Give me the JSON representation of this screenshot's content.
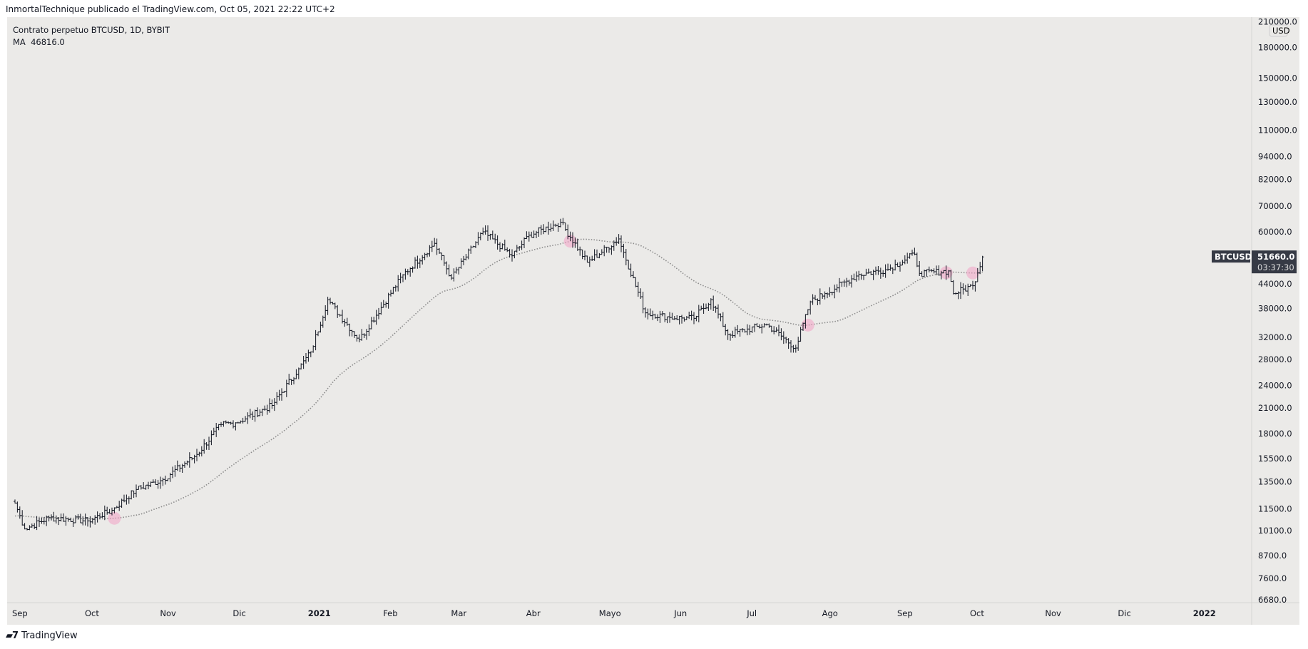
{
  "header": {
    "attribution": "InmortalTechnique publicado el TradingView.com, Oct 05, 2021 22:22 UTC+2"
  },
  "legend": {
    "symbol_line": "Contrato perpetuo BTCUSD, 1D, BYBIT",
    "ma_label": "MA",
    "ma_value": "46816.0"
  },
  "footer": {
    "brand": "TradingView"
  },
  "colors": {
    "bg": "#ebeae8",
    "bar": "#131722",
    "ma": "#8c8c8c",
    "highlight": "#f2a0c4",
    "label_bg": "#363a45"
  },
  "chart_data": {
    "type": "ohlc",
    "symbol": "BTCUSD",
    "interval": "1D",
    "exchange": "BYBIT",
    "scale": "log",
    "currency": "USD",
    "ylim": [
      6500,
      215000
    ],
    "price_ticks": [
      "210000.0",
      "180000.0",
      "150000.0",
      "130000.0",
      "110000.0",
      "94000.0",
      "82000.0",
      "70000.0",
      "60000.0",
      "44000.0",
      "38000.0",
      "32000.0",
      "28000.0",
      "24000.0",
      "21000.0",
      "18000.0",
      "15500.0",
      "13500.0",
      "11500.0",
      "10100.0",
      "8700.0",
      "7600.0",
      "6680.0"
    ],
    "price_tick_values": [
      210000,
      180000,
      150000,
      130000,
      110000,
      94000,
      82000,
      70000,
      60000,
      44000,
      38000,
      32000,
      28000,
      24000,
      21000,
      18000,
      15500,
      13500,
      11500,
      10100,
      8700,
      7600,
      6680
    ],
    "time_ticks": [
      {
        "label": "Sep",
        "day": 0
      },
      {
        "label": "Oct",
        "day": 30
      },
      {
        "label": "Nov",
        "day": 61
      },
      {
        "label": "Dic",
        "day": 91
      },
      {
        "label": "2021",
        "day": 122,
        "bold": true
      },
      {
        "label": "Feb",
        "day": 153
      },
      {
        "label": "Mar",
        "day": 181
      },
      {
        "label": "Abr",
        "day": 212
      },
      {
        "label": "Mayo",
        "day": 242
      },
      {
        "label": "Jun",
        "day": 273
      },
      {
        "label": "Jul",
        "day": 303
      },
      {
        "label": "Ago",
        "day": 334
      },
      {
        "label": "Sep",
        "day": 365
      },
      {
        "label": "Oct",
        "day": 395
      },
      {
        "label": "Nov",
        "day": 426
      },
      {
        "label": "Dic",
        "day": 456
      },
      {
        "label": "2022",
        "day": 487,
        "bold": true
      }
    ],
    "start_date": "2020-09-01",
    "close_keypoints": [
      [
        0,
        11900
      ],
      [
        4,
        10200
      ],
      [
        14,
        10900
      ],
      [
        30,
        10700
      ],
      [
        40,
        11400
      ],
      [
        50,
        12900
      ],
      [
        61,
        13700
      ],
      [
        75,
        15900
      ],
      [
        85,
        19000
      ],
      [
        91,
        19200
      ],
      [
        106,
        21300
      ],
      [
        117,
        26500
      ],
      [
        122,
        29300
      ],
      [
        129,
        40000
      ],
      [
        142,
        31500
      ],
      [
        160,
        46400
      ],
      [
        173,
        56000
      ],
      [
        180,
        45500
      ],
      [
        193,
        60000
      ],
      [
        205,
        52000
      ],
      [
        212,
        58800
      ],
      [
        225,
        63500
      ],
      [
        236,
        50000
      ],
      [
        249,
        57500
      ],
      [
        260,
        37000
      ],
      [
        270,
        36000
      ],
      [
        280,
        35800
      ],
      [
        287,
        40000
      ],
      [
        294,
        32500
      ],
      [
        310,
        34500
      ],
      [
        322,
        30000
      ],
      [
        328,
        39500
      ],
      [
        334,
        41500
      ],
      [
        348,
        46500
      ],
      [
        360,
        48000
      ],
      [
        371,
        52500
      ],
      [
        373,
        46800
      ],
      [
        385,
        47500
      ],
      [
        387,
        41500
      ],
      [
        395,
        43500
      ],
      [
        399,
        51660
      ]
    ],
    "ma_period": 50,
    "ma_last": 46816.0,
    "last_price": {
      "symbol": "BTCUSD",
      "value": "51660.0",
      "countdown": "03:37:30"
    },
    "highlight_days": [
      41,
      229,
      327,
      384,
      395
    ]
  }
}
